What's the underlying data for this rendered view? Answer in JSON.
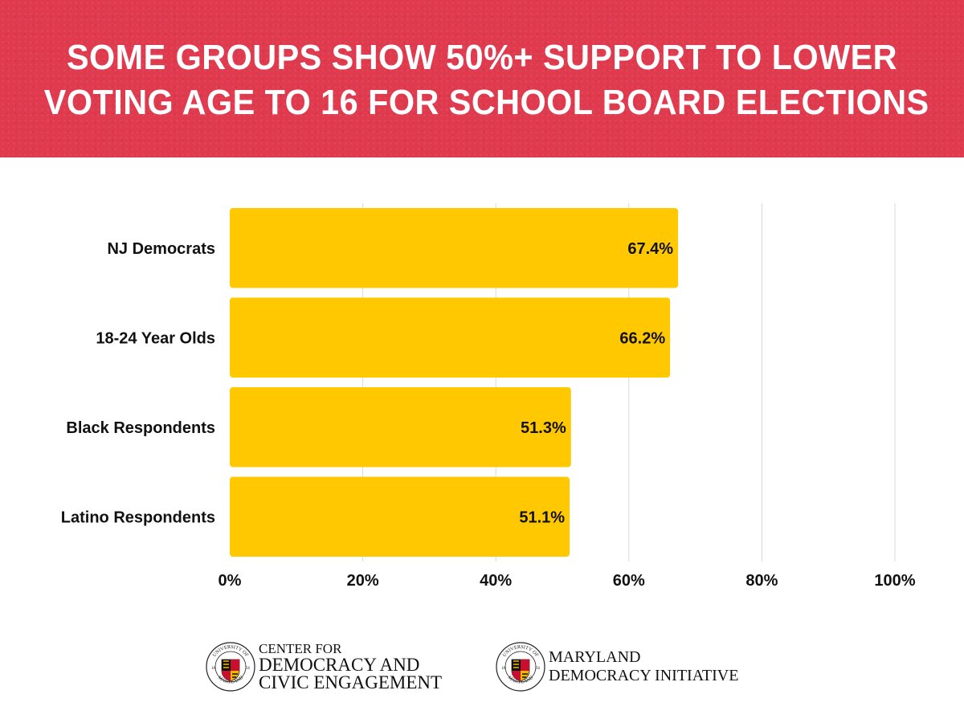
{
  "header": {
    "title_line1": "SOME GROUPS SHOW 50%+ SUPPORT TO LOWER",
    "title_line2": "VOTING AGE TO 16 FOR SCHOOL BOARD ELECTIONS",
    "background_color": "#e03a4e"
  },
  "chart_data": {
    "type": "bar",
    "orientation": "horizontal",
    "title": "SOME GROUPS SHOW 50%+ SUPPORT TO LOWER VOTING AGE TO 16 FOR SCHOOL BOARD ELECTIONS",
    "categories": [
      "NJ Democrats",
      "18-24 Year Olds",
      "Black Respondents",
      "Latino Respondents"
    ],
    "values": [
      67.4,
      66.2,
      51.3,
      51.1
    ],
    "data_labels": [
      "67.4%",
      "66.2%",
      "51.3%",
      "51.1%"
    ],
    "xlim": [
      0,
      100
    ],
    "x_ticks": [
      0,
      20,
      40,
      60,
      80,
      100
    ],
    "x_tick_labels": [
      "0%",
      "20%",
      "40%",
      "60%",
      "80%",
      "100%"
    ],
    "xlabel": "",
    "ylabel": "",
    "bar_color": "#ffc800",
    "grid": "vertical",
    "legend": "none"
  },
  "logos": {
    "left": {
      "seal_ring_text": "UNIVERSITY OF MARYLAND",
      "seal_year_left": "18",
      "seal_year_right": "56",
      "line1": "Center for",
      "line2": "Democracy and",
      "line3": "Civic Engagement"
    },
    "right": {
      "seal_ring_text": "UNIVERSITY OF MARYLAND",
      "seal_year_left": "18",
      "seal_year_right": "56",
      "line1": "Maryland",
      "line2": "Democracy Initiative"
    }
  }
}
